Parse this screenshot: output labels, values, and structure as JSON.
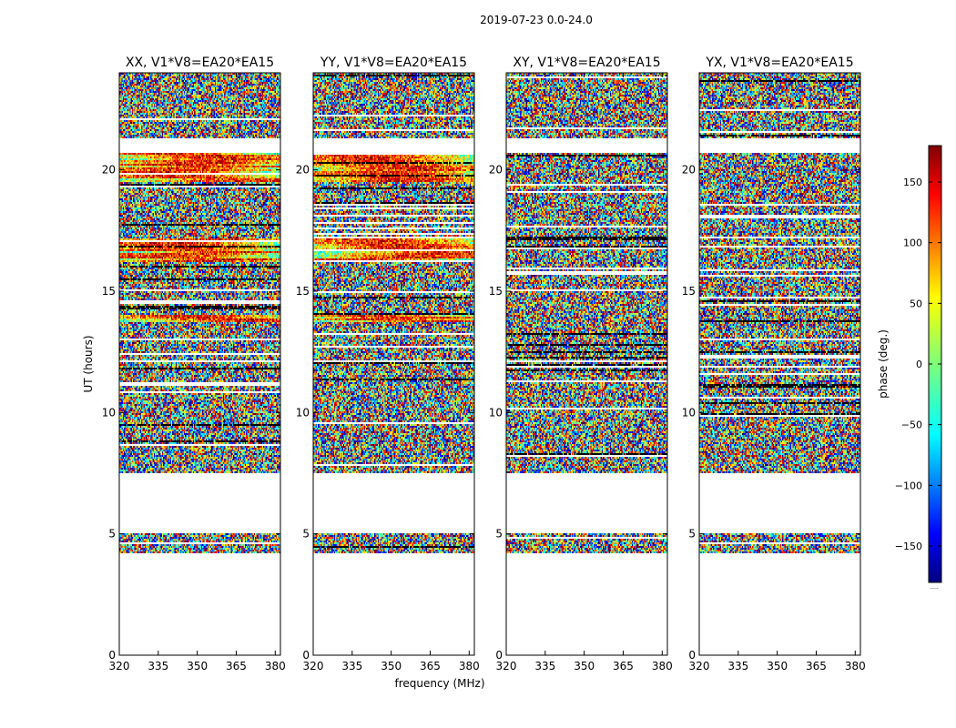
{
  "suptitle": "2019-07-23 0.0-24.0",
  "chart_data": {
    "type": "heatmap",
    "description_of_values": "visibility phase vs frequency and UT",
    "xlabel": "frequency (MHz)",
    "ylabel": "UT (hours)",
    "xlim": [
      320,
      382
    ],
    "ylim": [
      0,
      24
    ],
    "xticks": [
      320,
      335,
      350,
      365,
      380
    ],
    "yticks": [
      0,
      5,
      10,
      15,
      20
    ],
    "panels": [
      {
        "title": "XX, V1*V8=EA20*EA15",
        "pol": "XX"
      },
      {
        "title": "YY, V1*V8=EA20*EA15",
        "pol": "YY"
      },
      {
        "title": "XY, V1*V8=EA20*EA15",
        "pol": "XY"
      },
      {
        "title": "YX, V1*V8=EA20*EA15",
        "pol": "YX"
      }
    ],
    "data_time_ranges_hours": [
      [
        4.2,
        5.0
      ],
      [
        7.5,
        20.7
      ],
      [
        21.3,
        24.0
      ]
    ],
    "coherent_time_ranges_hours": {
      "XX": [
        [
          13.7,
          14.0
        ],
        [
          16.2,
          17.2
        ],
        [
          19.5,
          20.7
        ]
      ],
      "YY": [
        [
          13.7,
          14.0
        ],
        [
          16.2,
          17.2
        ],
        [
          19.5,
          20.7
        ]
      ],
      "XY": [],
      "YX": []
    },
    "colorbar": {
      "label": "phase (deg.)",
      "range": [
        -180,
        180
      ],
      "ticks": [
        -150,
        -100,
        -50,
        0,
        50,
        100,
        150
      ],
      "colormap": "jet",
      "footnote": "....."
    }
  }
}
